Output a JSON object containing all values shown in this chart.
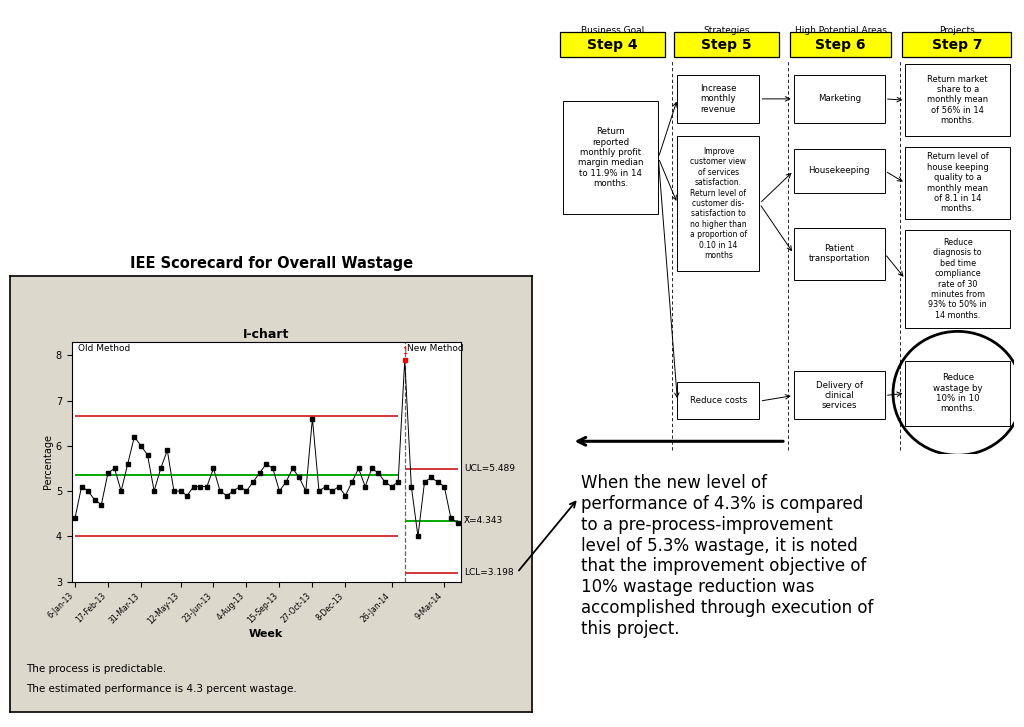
{
  "title": "IEE Scorecard for Overall Wastage",
  "ichart_title": "I-chart",
  "xlabel": "Week",
  "ylabel": "Percentage",
  "y_values": [
    4.4,
    5.1,
    5.0,
    4.8,
    4.7,
    5.4,
    5.5,
    5.0,
    5.6,
    6.2,
    6.0,
    5.8,
    5.0,
    5.5,
    5.9,
    5.0,
    5.0,
    4.9,
    5.1,
    5.1,
    5.1,
    5.5,
    5.0,
    4.9,
    5.0,
    5.1,
    5.0,
    5.2,
    5.4,
    5.6,
    5.5,
    5.0,
    5.2,
    5.5,
    5.3,
    5.0,
    6.6,
    5.0,
    5.1,
    5.0,
    5.1,
    4.9,
    5.2,
    5.5,
    5.1,
    5.5,
    5.4,
    5.2,
    5.1,
    5.2,
    7.9,
    5.1,
    4.0,
    5.2,
    5.3,
    5.2,
    5.1,
    4.4,
    4.3
  ],
  "ucl_new": 5.489,
  "mean_new": 4.343,
  "lcl_new": 3.198,
  "ucl_old": 6.65,
  "lcl_old": 4.0,
  "mean_old": 5.35,
  "split_idx": 50,
  "background_color": "#ddd8cc",
  "chart_bg": "#ffffff",
  "note_line1": "The process is predictable.",
  "note_line2": "The estimated performance is 4.3 percent wastage.",
  "text_box": "When the new level of\nperformance of 4.3% is compared\nto a pre-process-improvement\nlevel of 5.3% wastage, it is noted\nthat the improvement objective of\n10% wastage reduction was\naccomplished through execution of\nthis project.",
  "step4_label": "Step 4",
  "step5_label": "Step 5",
  "step6_label": "Step 6",
  "step7_label": "Step 7",
  "col_headers": [
    "Business Goal",
    "Strategies",
    "High Potential Areas",
    "Projects"
  ],
  "tick_pos": [
    0,
    5,
    10,
    16,
    21,
    26,
    31,
    36,
    41,
    48,
    56
  ],
  "tick_lbs": [
    "6-Jan-13",
    "17-Feb-13",
    "31-Mar-13",
    "12-May-13",
    "23-Jun-13",
    "4-Aug-13",
    "15-Sep-13",
    "27-Oct-13",
    "8-Dec-13",
    "26-Jan-14",
    "9-Mar-14"
  ],
  "ylim_min": 3,
  "ylim_max": 8.3,
  "yticks": [
    3,
    4,
    5,
    6,
    7,
    8
  ]
}
